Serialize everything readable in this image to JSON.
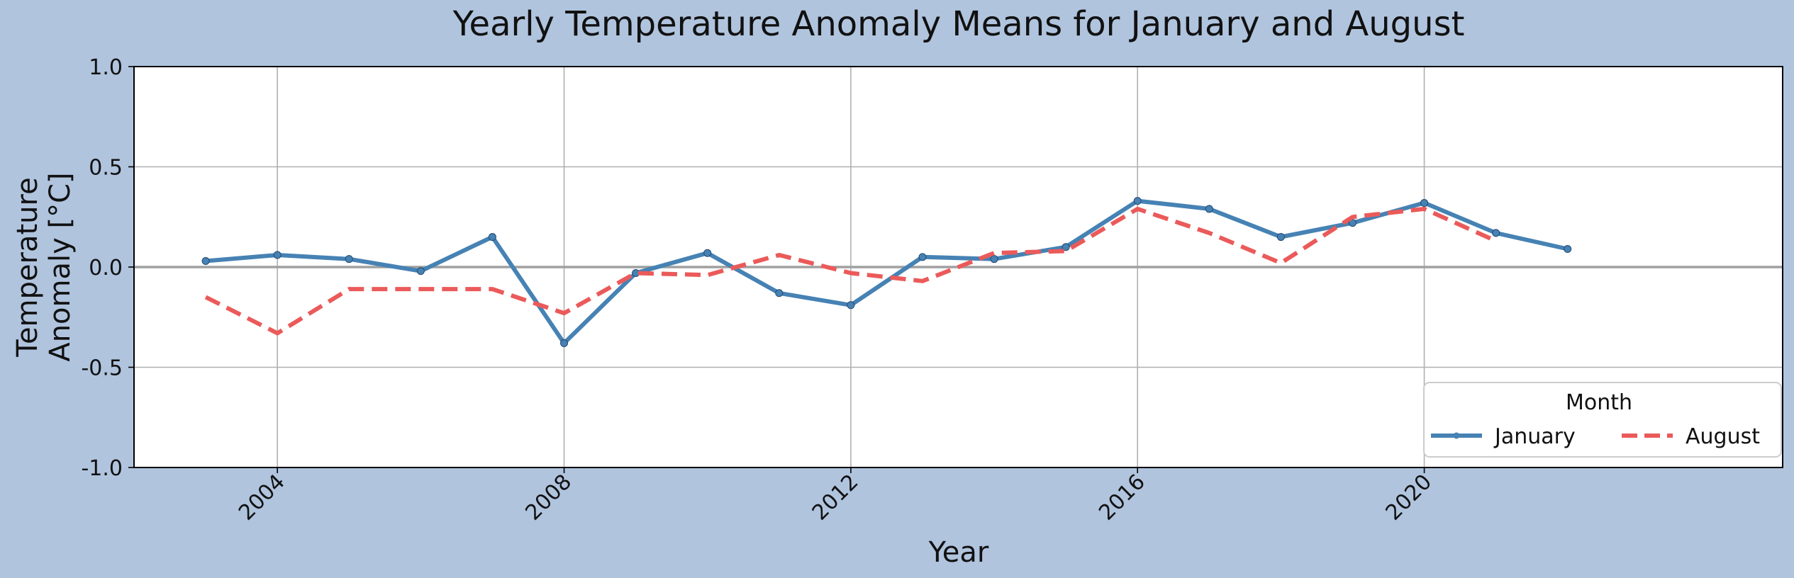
{
  "chart_data": {
    "type": "line",
    "title": "Yearly Temperature Anomaly Means for January and August",
    "xlabel": "Year",
    "ylabel_lines": [
      "Temperature",
      "Anomaly [°C]"
    ],
    "xlim": [
      2002,
      2025
    ],
    "ylim": [
      -1.0,
      1.0
    ],
    "x_ticks": [
      2004,
      2008,
      2012,
      2016,
      2020
    ],
    "y_ticks": [
      1.0,
      0.5,
      0.0,
      -0.5,
      -1.0
    ],
    "y_tick_labels": [
      "1.0",
      "0.5",
      "0.0",
      "-0.5",
      "-1.0"
    ],
    "grid": true,
    "zero_line": true,
    "legend": {
      "title": "Month",
      "placement": "bottom-right"
    },
    "series": [
      {
        "name": "January",
        "color": "#4682b4",
        "style": "solid-with-markers",
        "x": [
          2003,
          2004,
          2005,
          2006,
          2007,
          2008,
          2009,
          2010,
          2011,
          2012,
          2013,
          2014,
          2015,
          2016,
          2017,
          2018,
          2019,
          2020,
          2021,
          2022
        ],
        "values": [
          0.03,
          0.06,
          0.04,
          -0.02,
          0.15,
          -0.38,
          -0.03,
          0.07,
          -0.13,
          -0.19,
          0.05,
          0.04,
          0.1,
          0.33,
          0.29,
          0.15,
          0.22,
          0.32,
          0.17,
          0.09
        ]
      },
      {
        "name": "August",
        "color": "#eb5a5a",
        "style": "dashed",
        "x": [
          2003,
          2004,
          2005,
          2006,
          2007,
          2008,
          2009,
          2010,
          2011,
          2012,
          2013,
          2014,
          2015,
          2016,
          2017,
          2018,
          2019,
          2020,
          2021
        ],
        "values": [
          -0.15,
          -0.33,
          -0.11,
          -0.11,
          -0.11,
          -0.23,
          -0.03,
          -0.04,
          0.06,
          -0.03,
          -0.07,
          0.07,
          0.08,
          0.29,
          0.17,
          0.02,
          0.25,
          0.29,
          0.13
        ]
      }
    ]
  }
}
